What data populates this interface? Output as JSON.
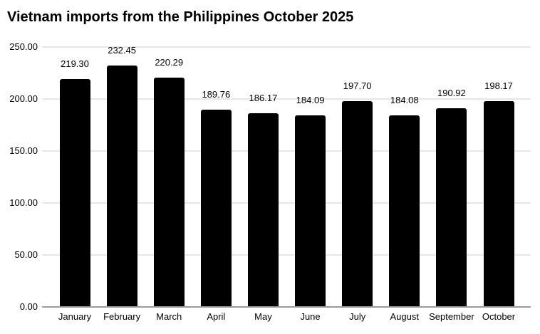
{
  "chart_data": {
    "type": "bar",
    "title": "Vietnam imports from the Philippines October 2025",
    "categories": [
      "January",
      "February",
      "March",
      "April",
      "May",
      "June",
      "July",
      "August",
      "September",
      "October"
    ],
    "values": [
      219.3,
      232.45,
      220.29,
      189.76,
      186.17,
      184.09,
      197.7,
      184.08,
      190.92,
      198.17
    ],
    "value_labels": [
      "219.30",
      "232.45",
      "220.29",
      "189.76",
      "186.17",
      "184.09",
      "197.70",
      "184.08",
      "190.92",
      "198.17"
    ],
    "xlabel": "",
    "ylabel": "",
    "ylim": [
      0,
      250
    ],
    "ytick_step": 50,
    "ytick_labels": [
      "0.00",
      "50.00",
      "100.00",
      "150.00",
      "200.00",
      "250.00"
    ],
    "grid": true,
    "legend_position": "none",
    "bar_color": "#000000",
    "gridline_color": "#e7e7e7",
    "axis_line_color": "#9a9a9a",
    "text_color": "#000000"
  }
}
